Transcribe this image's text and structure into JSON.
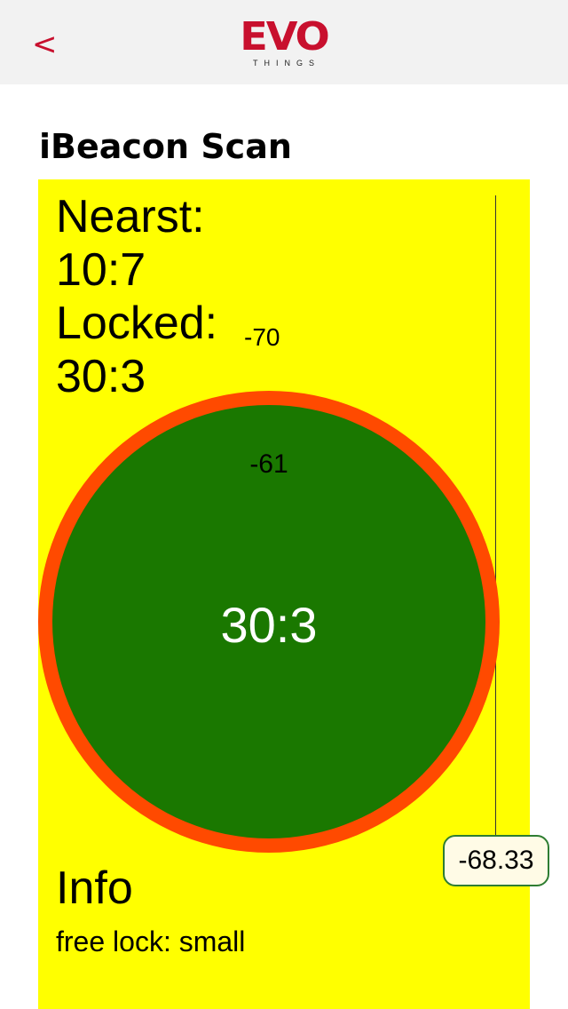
{
  "header": {
    "back_label": "<",
    "logo_main": "EVO",
    "logo_sub": "THINGS"
  },
  "page": {
    "title": "iBeacon Scan"
  },
  "scan": {
    "nearest_label": "Nearst:",
    "nearest_value": "10:7",
    "locked_label": "Locked:",
    "locked_value": "30:3",
    "locked_rssi": "-70",
    "circle_beacon": "30:3",
    "circle_rssi": "-61",
    "average_rssi": "-68.33"
  },
  "info": {
    "title": "Info",
    "line": "free lock: small"
  },
  "colors": {
    "brand": "#c8102e",
    "panel_bg": "#ffff00",
    "ring": "#ff4a00",
    "circle": "#1a7800"
  }
}
